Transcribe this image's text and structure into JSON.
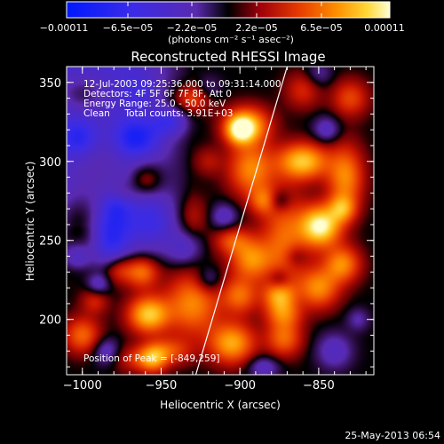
{
  "chart_data": {
    "type": "heatmap",
    "title": "Reconstructed RHESSI Image",
    "xlabel": "Heliocentric X (arcsec)",
    "ylabel": "Heliocentric Y (arcsec)",
    "xlim": [
      -1010,
      -815
    ],
    "ylim": [
      165,
      360
    ],
    "x_ticks": [
      -1000,
      -950,
      -900,
      -850
    ],
    "x_tick_labels": [
      "−1000",
      "−950",
      "−900",
      "−850"
    ],
    "y_ticks": [
      200,
      250,
      300,
      350
    ],
    "y_tick_labels": [
      "200",
      "250",
      "300",
      "350"
    ],
    "colorbar": {
      "min": -0.00011,
      "max": 0.00011,
      "tick_labels": [
        "−0.00011",
        "−6.5e−05",
        "−2.2e−05",
        "2.2e−05",
        "6.5e−05",
        "0.00011"
      ],
      "units": "(photons cm⁻² s⁻¹ asec⁻²)"
    },
    "annotations": {
      "time": "12-Jul-2003 09:25:36.000 to 09:31:14.000",
      "detectors": "Detectors: 4F 5F 6F 7F 8F, Att 0",
      "energy": "Energy Range: 25.0 - 50.0 keV",
      "clean": "Clean     Total counts: 3.91E+03",
      "peak": "Position of Peak = [-849,259]"
    },
    "peak": [
      -849,
      259
    ],
    "limb_line": [
      [
        -928,
        165
      ],
      [
        -870,
        360
      ]
    ],
    "sources": [
      [
        -1000,
        343,
        11,
        8,
        0.3
      ],
      [
        -990,
        300,
        15,
        18,
        0.2
      ],
      [
        -1002,
        260,
        12,
        14,
        0.4
      ],
      [
        -960,
        288,
        8,
        8,
        0.4
      ],
      [
        -975,
        278,
        6,
        6,
        0.2
      ],
      [
        -930,
        265,
        7,
        9,
        0.2
      ],
      [
        -895,
        323,
        10,
        8,
        0.7
      ],
      [
        -893,
        295,
        10,
        12,
        0.6
      ],
      [
        -860,
        300,
        11,
        8,
        0.8
      ],
      [
        -872,
        250,
        10,
        22,
        0.5
      ],
      [
        -849,
        259,
        9,
        9,
        1.0
      ],
      [
        -833,
        290,
        8,
        14,
        0.6
      ],
      [
        -835,
        235,
        8,
        8,
        0.6
      ],
      [
        -893,
        238,
        9,
        9,
        0.6
      ],
      [
        -905,
        250,
        8,
        6,
        0.4
      ],
      [
        -962,
        230,
        7,
        7,
        0.5
      ],
      [
        -977,
        232,
        7,
        7,
        0.4
      ],
      [
        -992,
        212,
        6,
        6,
        0.3
      ],
      [
        -930,
        210,
        12,
        14,
        0.6
      ],
      [
        -900,
        215,
        8,
        8,
        0.5
      ],
      [
        -872,
        203,
        8,
        6,
        0.4
      ],
      [
        -958,
        203,
        9,
        8,
        0.8
      ],
      [
        -1000,
        190,
        8,
        8,
        0.5
      ],
      [
        -945,
        180,
        10,
        6,
        0.4
      ],
      [
        -905,
        185,
        10,
        9,
        0.7
      ],
      [
        -872,
        188,
        8,
        8,
        0.5
      ],
      [
        -850,
        220,
        9,
        9,
        0.6
      ],
      [
        -830,
        340,
        8,
        8,
        0.4
      ],
      [
        -930,
        340,
        9,
        6,
        0.4
      ],
      [
        -965,
        175,
        10,
        6,
        0.3
      ],
      [
        -920,
        300,
        6,
        6,
        0.2
      ],
      [
        -860,
        345,
        8,
        8,
        0.3
      ],
      [
        -885,
        275,
        6,
        6,
        0.4
      ],
      [
        -900,
        320,
        6,
        6,
        0.7
      ],
      [
        -835,
        270,
        6,
        6,
        0.5
      ],
      [
        -875,
        215,
        7,
        7,
        0.6
      ],
      [
        -955,
        175,
        6,
        6,
        0.5
      ],
      [
        -982,
        250,
        8,
        14,
        -0.5
      ],
      [
        -1002,
        315,
        8,
        8,
        -0.4
      ],
      [
        -965,
        315,
        10,
        8,
        -0.5
      ],
      [
        -945,
        325,
        8,
        6,
        -0.4
      ],
      [
        -1003,
        240,
        6,
        6,
        -0.3
      ],
      [
        -955,
        262,
        10,
        12,
        -0.3
      ],
      [
        -978,
        272,
        6,
        6,
        -0.3
      ],
      [
        -935,
        245,
        8,
        8,
        -0.3
      ],
      [
        -910,
        265,
        6,
        6,
        -0.3
      ],
      [
        -920,
        225,
        6,
        6,
        -0.3
      ],
      [
        -875,
        275,
        5,
        5,
        -0.3
      ],
      [
        -875,
        225,
        5,
        5,
        -0.3
      ],
      [
        -840,
        180,
        8,
        8,
        -0.3
      ],
      [
        -845,
        320,
        6,
        6,
        -0.3
      ],
      [
        -885,
        170,
        7,
        5,
        -0.3
      ],
      [
        -985,
        180,
        6,
        6,
        -0.3
      ],
      [
        -920,
        345,
        6,
        6,
        -0.2
      ],
      [
        -850,
        355,
        6,
        6,
        -0.2
      ],
      [
        -825,
        200,
        5,
        5,
        -0.2
      ],
      [
        -990,
        222,
        5,
        5,
        -0.3
      ],
      [
        -865,
        240,
        5,
        5,
        -0.2
      ],
      [
        -962,
        345,
        6,
        6,
        -0.2
      ]
    ]
  },
  "footer": {
    "date": "25-May-2013 06:54"
  }
}
